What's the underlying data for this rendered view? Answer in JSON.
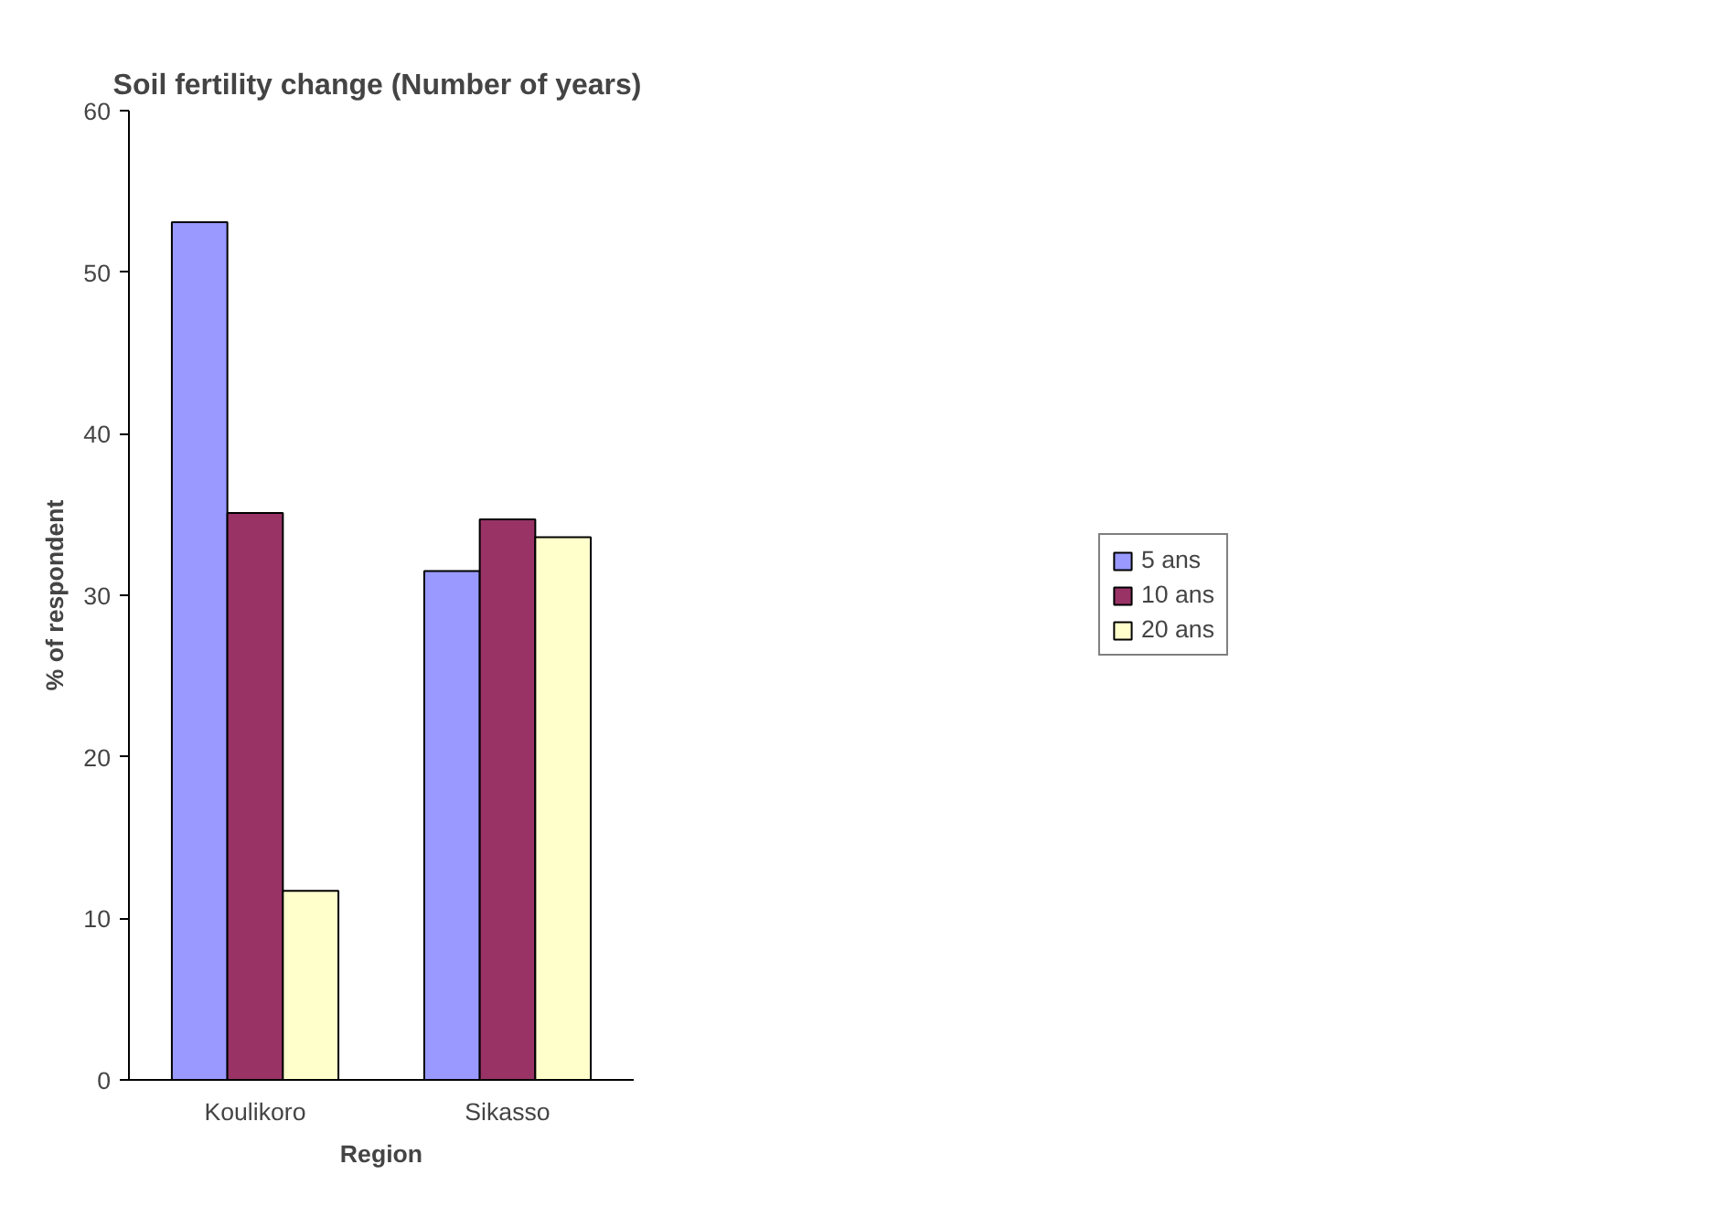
{
  "chart_data": {
    "type": "bar",
    "title": "Soil fertility  change (Number of years)",
    "xlabel": "Region",
    "ylabel": "% of respondent",
    "categories": [
      "Koulikoro",
      "Sikasso"
    ],
    "series": [
      {
        "name": "5 ans",
        "color": "#9999ff",
        "values": [
          53.1,
          31.5
        ]
      },
      {
        "name": "10 ans",
        "color": "#993366",
        "values": [
          35.1,
          34.7
        ]
      },
      {
        "name": "20 ans",
        "color": "#ffffcc",
        "values": [
          11.7,
          33.6
        ]
      }
    ],
    "ylim": [
      0,
      60
    ],
    "yticks": [
      0,
      10,
      20,
      30,
      40,
      50,
      60
    ],
    "grid": false,
    "legend": "right"
  }
}
